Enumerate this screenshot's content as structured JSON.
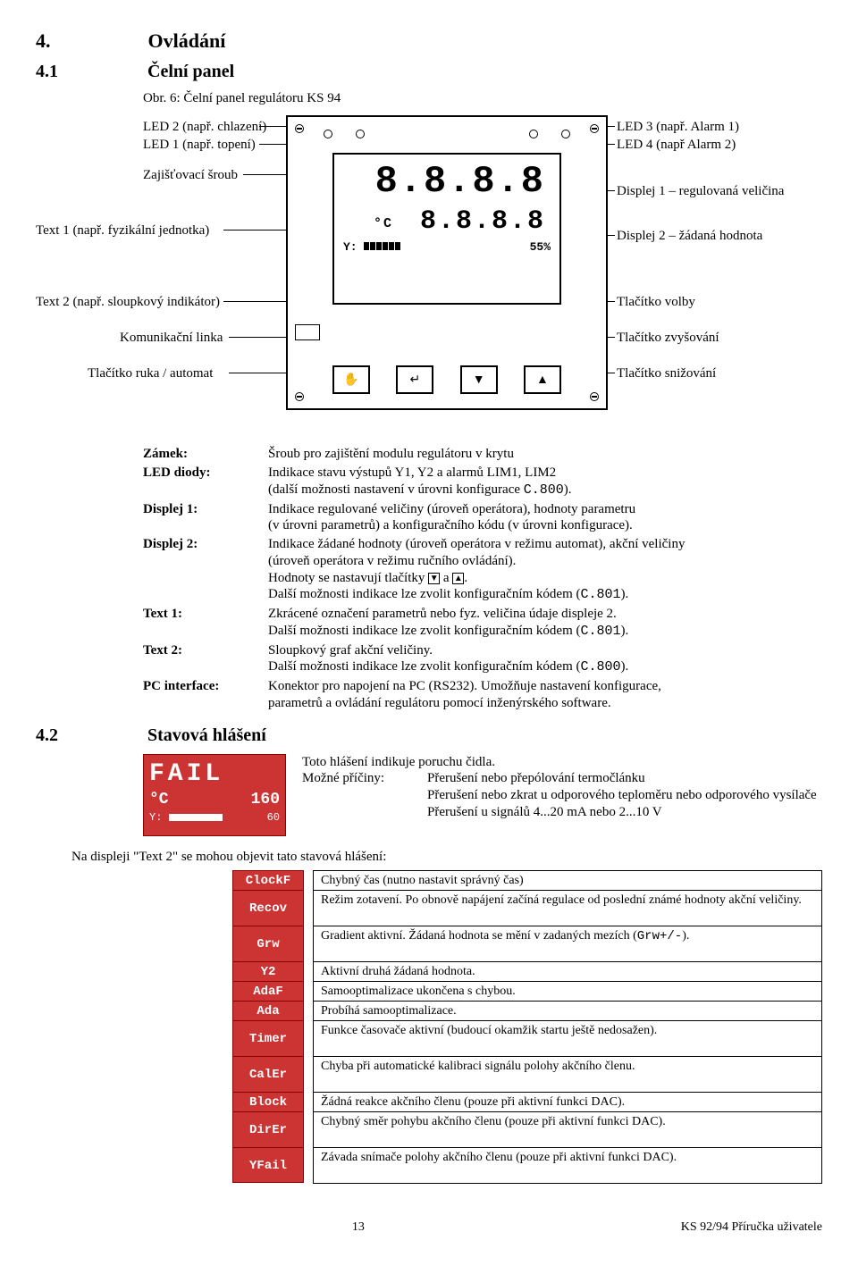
{
  "section": {
    "num": "4.",
    "title": "Ovládání"
  },
  "sub1": {
    "num": "4.1",
    "title": "Čelní panel"
  },
  "figCaption": "Obr. 6: Čelní panel regulátoru KS 94",
  "labels": {
    "led2": "LED 2 (např. chlazení)",
    "led1": "LED 1 (např. topení)",
    "screw": "Zajišťovací šroub",
    "text1": "Text 1 (např. fyzikální jednotka)",
    "text2": "Text 2 (např. sloupkový indikátor)",
    "comm": "Komunikační linka",
    "btnHand": "Tlačítko ruka / automat",
    "led3": "LED 3 (např. Alarm 1)",
    "led4": "LED 4 (např Alarm 2)",
    "disp1": "Displej 1 – regulovaná veličina",
    "disp2": "Displej 2 – žádaná hodnota",
    "btnSel": "Tlačítko volby",
    "btnUp": "Tlačítko zvyšování",
    "btnDown": "Tlačítko snižování"
  },
  "display": {
    "row1": "8.8.8.8",
    "unit": "°C",
    "row2": "8.8.8.8",
    "barLabel": "Y:",
    "pct": "55%"
  },
  "buttons": {
    "hand": "✋",
    "sel": "↵",
    "down": "▼",
    "up": "▲"
  },
  "defs": [
    {
      "term": "Zámek:",
      "desc": "Šroub pro zajištění modulu regulátoru v krytu"
    },
    {
      "term": "LED diody:",
      "desc": "Indikace stavu výstupů Y1, Y2 a alarmů LIM1, LIM2\n(další možnosti nastavení v úrovni konfigurace C.800)."
    },
    {
      "term": "Displej 1:",
      "desc": "Indikace regulované veličiny (úroveň operátora), hodnoty parametru\n(v úrovni parametrů) a konfiguračního kódu (v úrovni konfigurace)."
    },
    {
      "term": "Displej 2:",
      "desc": "Indikace žádané hodnoty (úroveň operátora v režimu automat), akční veličiny\n(úroveň operátora v režimu ručního ovládání).\nHodnoty se nastavují tlačítky ▼ a ▲.\nDalší možnosti indikace lze zvolit konfiguračním kódem (C.801)."
    },
    {
      "term": "Text 1:",
      "desc": "Zkrácené označení parametrů nebo fyz. veličina údaje displeje 2.\nDalší možnosti indikace lze zvolit konfiguračním kódem (C.801)."
    },
    {
      "term": "Text 2:",
      "desc": "Sloupkový graf akční veličiny.\nDalší možnosti indikace lze zvolit konfiguračním kódem (C.800)."
    },
    {
      "term": "PC interface:",
      "desc": "Konektor pro napojení na PC (RS232). Umožňuje nastavení konfigurace,\nparametrů a ovládání regulátoru pomocí inženýrského software."
    }
  ],
  "sub2": {
    "num": "4.2",
    "title": "Stavová hlášení"
  },
  "fail": {
    "line1": "FAIL",
    "unit": "°C",
    "val": "160",
    "barLabel": "Y:",
    "pct": "60",
    "intro": "Toto hlášení indikuje poruchu čidla.",
    "causesLabel": "Možné příčiny:",
    "causes": "Přerušení nebo přepólování termočlánku\nPřerušení nebo zkrat u odporového teploměru nebo odporového vysílače\nPřerušení u signálů 4...20 mA nebo 2...10 V"
  },
  "text2Intro": "Na displeji \"Text 2\" se mohou objevit tato stavová hlášení:",
  "statusTable": [
    {
      "label": "ClockF",
      "text": "Chybný čas (nutno nastavit správný čas)"
    },
    {
      "label": "Recov",
      "text": "Režim zotavení. Po obnově napájení začíná regulace od poslední známé hodnoty akční veličiny."
    },
    {
      "label": "Grw",
      "text": "Gradient aktivní. Žádaná hodnota se mění v zadaných mezích (Grw+/-)."
    },
    {
      "label": "Y2",
      "text": "Aktivní druhá žádaná hodnota."
    },
    {
      "label": "AdaF",
      "text": "Samooptimalizace ukončena s chybou."
    },
    {
      "label": "Ada",
      "text": "Probíhá samooptimalizace."
    },
    {
      "label": "Timer",
      "text": "Funkce časovače aktivní (budoucí okamžik startu ještě nedosažen)."
    },
    {
      "label": "CalEr",
      "text": "Chyba při automatické kalibraci signálu polohy akčního členu."
    },
    {
      "label": "Block",
      "text": "Žádná reakce akčního členu (pouze při aktivní funkci DAC)."
    },
    {
      "label": "DirEr",
      "text": "Chybný směr pohybu akčního členu (pouze při aktivní funkci DAC)."
    },
    {
      "label": "YFail",
      "text": "Závada snímače polohy akčního členu (pouze při aktivní funkci DAC)."
    }
  ],
  "footer": {
    "page": "13",
    "doc": "KS 92/94  Příručka uživatele"
  }
}
